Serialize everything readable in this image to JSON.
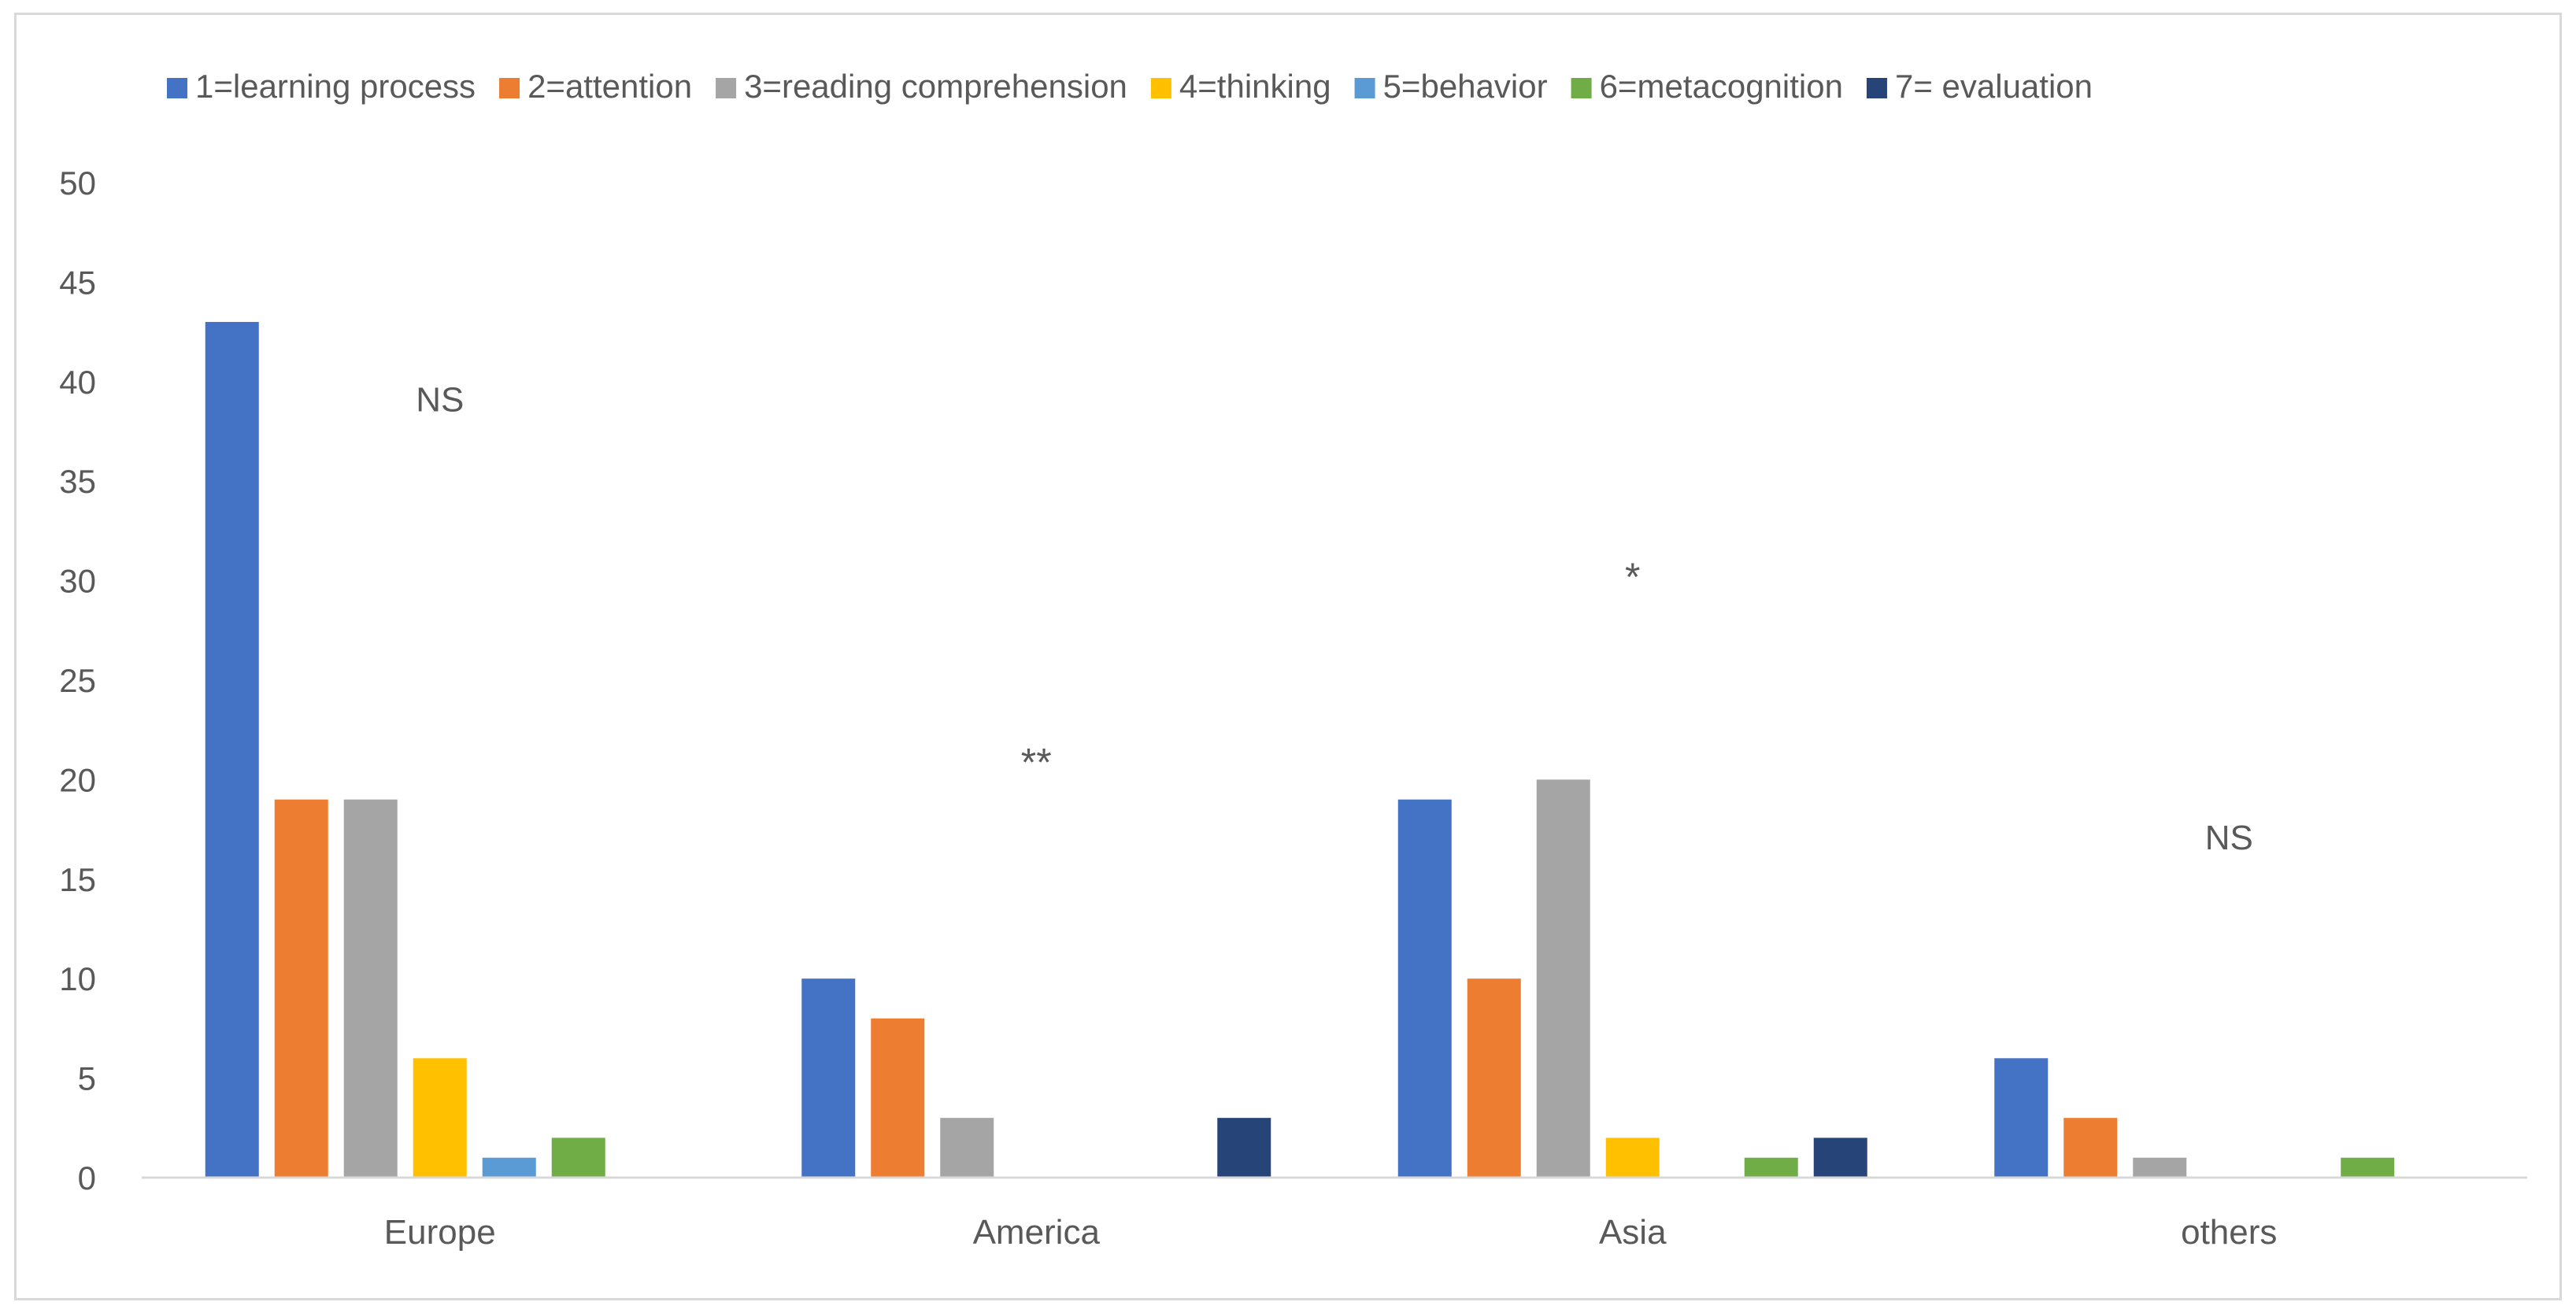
{
  "chart_data": {
    "type": "bar",
    "categories": [
      "Europe",
      "America",
      "Asia",
      "others"
    ],
    "series": [
      {
        "name": "1=learning process",
        "color": "#4472c4",
        "values": [
          43,
          10,
          19,
          6
        ]
      },
      {
        "name": "2=attention",
        "color": "#ed7d31",
        "values": [
          19,
          8,
          10,
          3
        ]
      },
      {
        "name": "3=reading comprehension",
        "color": "#a5a5a5",
        "values": [
          19,
          3,
          20,
          1
        ]
      },
      {
        "name": "4=thinking",
        "color": "#ffc000",
        "values": [
          6,
          0,
          2,
          0
        ]
      },
      {
        "name": "5=behavior",
        "color": "#5b9bd5",
        "values": [
          1,
          0,
          0,
          0
        ]
      },
      {
        "name": "6=metacognition",
        "color": "#70ad47",
        "values": [
          2,
          0,
          1,
          1
        ]
      },
      {
        "name": "7= evaluation",
        "color": "#264478",
        "values": [
          0,
          3,
          2,
          0
        ]
      }
    ],
    "ylim": [
      0,
      50
    ],
    "yticks": [
      0,
      5,
      10,
      15,
      20,
      25,
      30,
      35,
      40,
      45,
      50
    ],
    "grid": false,
    "legend_position": "top",
    "annotations": [
      {
        "text": "NS",
        "category": "Europe",
        "y": 38.5
      },
      {
        "text": "**",
        "category": "America",
        "y": 20.2
      },
      {
        "text": "*",
        "category": "Asia",
        "y": 29.5
      },
      {
        "text": "NS",
        "category": "others",
        "y": 16.5
      }
    ]
  }
}
